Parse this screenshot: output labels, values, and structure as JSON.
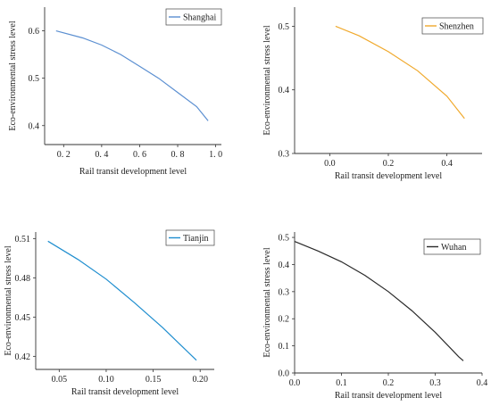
{
  "chart_data": [
    {
      "type": "line",
      "title": "",
      "xlabel": "Rail transit development level",
      "ylabel": "Eco-environmental stress level",
      "xlim": [
        0.1,
        1.03
      ],
      "ylim": [
        0.36,
        0.65
      ],
      "x_ticks": [
        0.2,
        0.4,
        0.6,
        0.8,
        1.0
      ],
      "x_tick_labels": [
        "0. 2",
        "0. 4",
        "0. 6",
        "0. 8",
        "1. 0"
      ],
      "y_ticks": [
        0.4,
        0.5,
        0.6
      ],
      "y_tick_labels": [
        "0.4",
        "0.5",
        "0.6"
      ],
      "legend_position": "top-right",
      "series": [
        {
          "name": "Shanghai",
          "color": "#5b8fd1",
          "x": [
            0.16,
            0.3,
            0.4,
            0.5,
            0.6,
            0.7,
            0.8,
            0.9,
            0.96
          ],
          "y": [
            0.6,
            0.585,
            0.57,
            0.55,
            0.525,
            0.5,
            0.47,
            0.44,
            0.41
          ]
        }
      ]
    },
    {
      "type": "line",
      "title": "",
      "xlabel": "Rail transit development level",
      "ylabel": "Eco-environmental stress level",
      "xlim": [
        -0.12,
        0.52
      ],
      "ylim": [
        0.3,
        0.53
      ],
      "x_ticks": [
        0.0,
        0.2,
        0.4
      ],
      "x_tick_labels": [
        "0.0",
        "0.2",
        "0.4"
      ],
      "y_ticks": [
        0.3,
        0.4,
        0.5
      ],
      "y_tick_labels": [
        "0.3",
        "0.4",
        "0.5"
      ],
      "legend_position": "top-right",
      "series": [
        {
          "name": "Shenzhen",
          "color": "#f0a92c",
          "x": [
            0.02,
            0.1,
            0.2,
            0.3,
            0.4,
            0.46
          ],
          "y": [
            0.5,
            0.485,
            0.46,
            0.43,
            0.39,
            0.355
          ]
        }
      ]
    },
    {
      "type": "line",
      "title": "",
      "xlabel": "Rail transit development level",
      "ylabel": "Eco-environmental stress level",
      "xlim": [
        0.025,
        0.215
      ],
      "ylim": [
        0.41,
        0.515
      ],
      "x_ticks": [
        0.05,
        0.1,
        0.15,
        0.2
      ],
      "x_tick_labels": [
        "0.05",
        "0.10",
        "0.15",
        "0.20"
      ],
      "y_ticks": [
        0.42,
        0.45,
        0.48,
        0.51
      ],
      "y_tick_labels": [
        "0.42",
        "0.45",
        "0.48",
        "0.51"
      ],
      "legend_position": "top-right",
      "series": [
        {
          "name": "Tianjin",
          "color": "#1f8ecf",
          "x": [
            0.038,
            0.07,
            0.1,
            0.13,
            0.16,
            0.196
          ],
          "y": [
            0.508,
            0.494,
            0.479,
            0.461,
            0.442,
            0.417
          ]
        }
      ]
    },
    {
      "type": "line",
      "title": "",
      "xlabel": "Rail transit development level",
      "ylabel": "Eco-environmental stress level",
      "xlim": [
        0.0,
        0.4
      ],
      "ylim": [
        0.0,
        0.52
      ],
      "x_ticks": [
        0.0,
        0.1,
        0.2,
        0.3,
        0.4
      ],
      "x_tick_labels": [
        "0.0",
        "0.1",
        "0.2",
        "0.3",
        "0.4"
      ],
      "y_ticks": [
        0.0,
        0.1,
        0.2,
        0.3,
        0.4,
        0.5
      ],
      "y_tick_labels": [
        "0.0",
        "0.1",
        "0.2",
        "0.3",
        "0.4",
        "0.5"
      ],
      "legend_position": "top-right",
      "series": [
        {
          "name": "Wuhan",
          "color": "#2a2a2a",
          "x": [
            0.0,
            0.05,
            0.1,
            0.15,
            0.2,
            0.25,
            0.3,
            0.35,
            0.36
          ],
          "y": [
            0.485,
            0.45,
            0.41,
            0.36,
            0.3,
            0.23,
            0.15,
            0.06,
            0.045
          ]
        }
      ]
    }
  ]
}
